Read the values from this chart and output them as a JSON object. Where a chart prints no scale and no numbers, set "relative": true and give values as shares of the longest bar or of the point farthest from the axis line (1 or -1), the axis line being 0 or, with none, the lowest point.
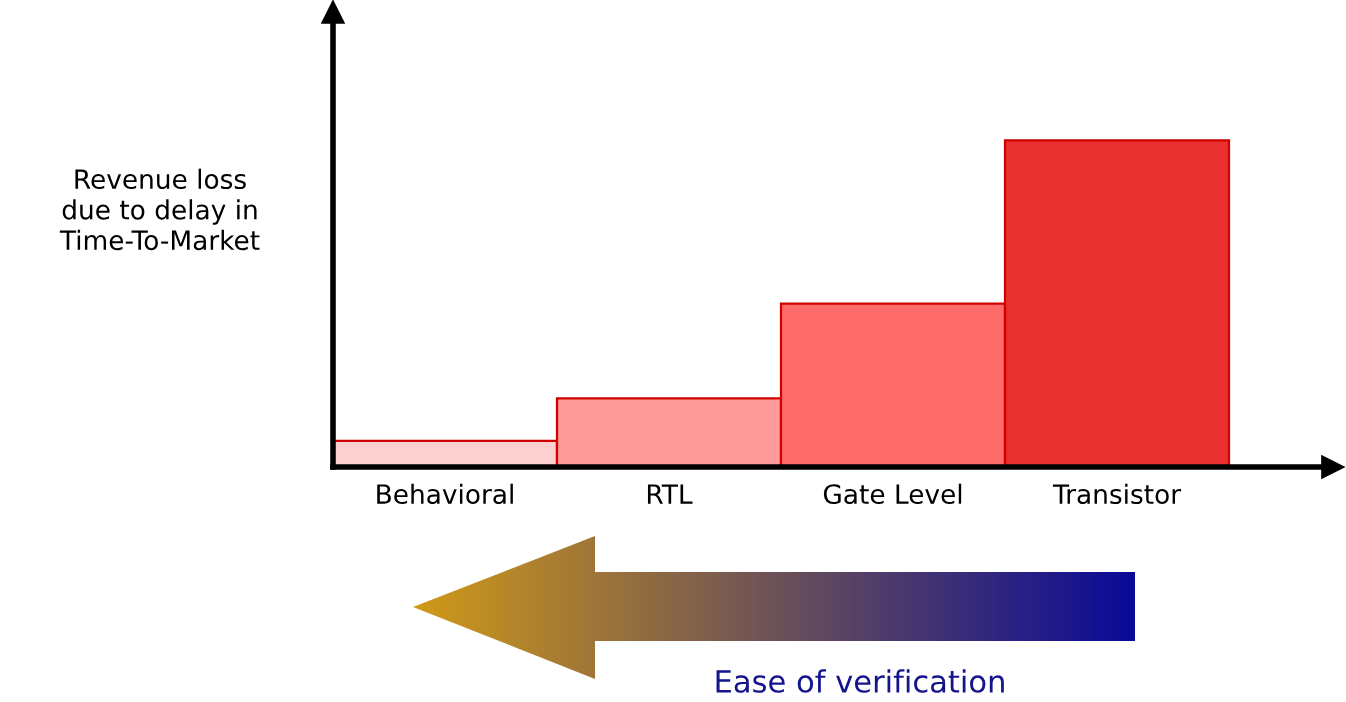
{
  "chart_data": {
    "type": "bar",
    "relative": true,
    "ylabel": "Revenue loss\ndue to delay in\nTime-To-Market",
    "categories": [
      "Behavioral",
      "RTL",
      "Gate Level",
      "Transistor"
    ],
    "values": [
      0.08,
      0.21,
      0.5,
      1
    ],
    "colors": [
      "#fdd0d0",
      "#fe9a9a",
      "#ff6a6a",
      "#e83030"
    ],
    "annotations": [
      "Ease of verification"
    ],
    "grid": false
  }
}
